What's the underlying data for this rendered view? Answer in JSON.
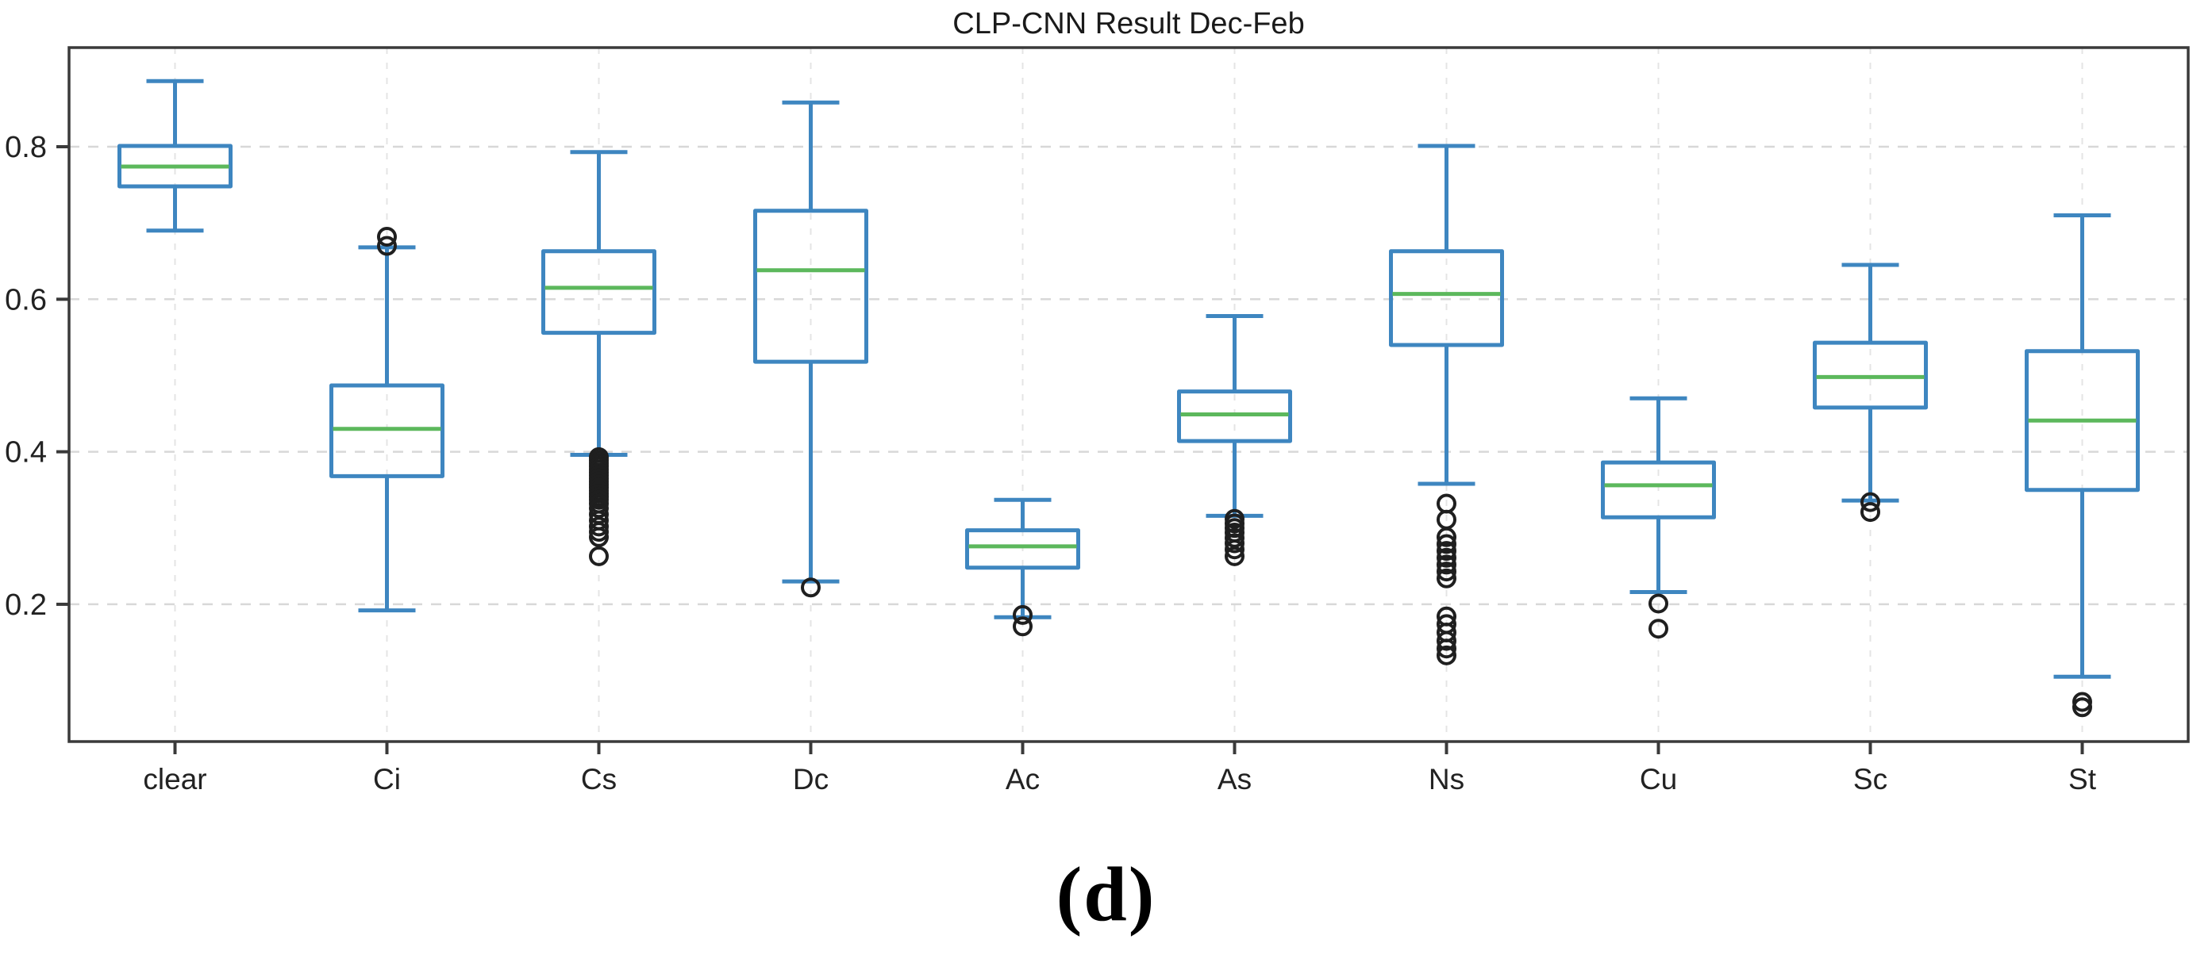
{
  "caption": {
    "text": "(d)"
  },
  "chart_data": {
    "type": "boxplot",
    "title": "CLP-CNN Result Dec-Feb",
    "categories": [
      "clear",
      "Ci",
      "Cs",
      "Dc",
      "Ac",
      "As",
      "Ns",
      "Cu",
      "Sc",
      "St"
    ],
    "ylim": [
      0.02,
      0.93
    ],
    "yticks": [
      0.2,
      0.4,
      0.6,
      0.8
    ],
    "ytick_labels": [
      "0.2",
      "0.4",
      "0.6",
      "0.8"
    ],
    "grid": "dashed horizontal at yticks and dashed vertical at each category, light gray",
    "legend": "none",
    "colors": {
      "box": "#3e86c0",
      "median": "#5cb85c",
      "outlier": "#1f1f1f",
      "spine": "#3a3a3a",
      "grid_h": "#d8d8d8",
      "grid_v": "#e4e4e4",
      "tick_text": "#222222",
      "title_text": "#1a1a1a"
    },
    "boxes": [
      {
        "label": "clear",
        "whislo": 0.69,
        "q1": 0.748,
        "med": 0.774,
        "q3": 0.801,
        "whishi": 0.886,
        "outliers": []
      },
      {
        "label": "Ci",
        "whislo": 0.192,
        "q1": 0.368,
        "med": 0.43,
        "q3": 0.487,
        "whishi": 0.668,
        "outliers": [
          0.67,
          0.682
        ]
      },
      {
        "label": "Cs",
        "whislo": 0.396,
        "q1": 0.556,
        "med": 0.615,
        "q3": 0.663,
        "whishi": 0.793,
        "outliers": [
          0.393,
          0.389,
          0.385,
          0.381,
          0.377,
          0.373,
          0.369,
          0.365,
          0.361,
          0.357,
          0.353,
          0.349,
          0.345,
          0.341,
          0.337,
          0.332,
          0.326,
          0.318,
          0.31,
          0.302,
          0.295,
          0.288,
          0.263
        ]
      },
      {
        "label": "Dc",
        "whislo": 0.23,
        "q1": 0.518,
        "med": 0.638,
        "q3": 0.716,
        "whishi": 0.858,
        "outliers": [
          0.222
        ]
      },
      {
        "label": "Ac",
        "whislo": 0.183,
        "q1": 0.248,
        "med": 0.276,
        "q3": 0.297,
        "whishi": 0.337,
        "outliers": [
          0.186,
          0.171
        ]
      },
      {
        "label": "As",
        "whislo": 0.316,
        "q1": 0.414,
        "med": 0.449,
        "q3": 0.479,
        "whishi": 0.578,
        "outliers": [
          0.312,
          0.306,
          0.3,
          0.294,
          0.287,
          0.28,
          0.272,
          0.263
        ]
      },
      {
        "label": "Ns",
        "whislo": 0.358,
        "q1": 0.54,
        "med": 0.607,
        "q3": 0.663,
        "whishi": 0.801,
        "outliers": [
          0.332,
          0.311,
          0.288,
          0.279,
          0.27,
          0.261,
          0.252,
          0.243,
          0.234,
          0.184,
          0.174,
          0.163,
          0.152,
          0.142,
          0.133
        ]
      },
      {
        "label": "Cu",
        "whislo": 0.216,
        "q1": 0.314,
        "med": 0.356,
        "q3": 0.386,
        "whishi": 0.47,
        "outliers": [
          0.201,
          0.168
        ]
      },
      {
        "label": "Sc",
        "whislo": 0.336,
        "q1": 0.458,
        "med": 0.498,
        "q3": 0.543,
        "whishi": 0.645,
        "outliers": [
          0.334,
          0.321
        ]
      },
      {
        "label": "St",
        "whislo": 0.105,
        "q1": 0.35,
        "med": 0.441,
        "q3": 0.532,
        "whishi": 0.71,
        "outliers": [
          0.072,
          0.065
        ]
      }
    ]
  }
}
